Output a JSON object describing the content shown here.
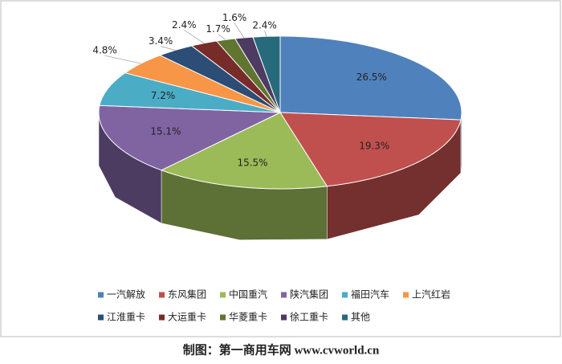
{
  "chart_data": {
    "type": "pie3d",
    "categories": [
      "一汽解放",
      "东风集团",
      "中国重汽",
      "陕汽集团",
      "福田汽车",
      "上汽红岩",
      "江淮重卡",
      "大运重卡",
      "华菱重卡",
      "徐工重卡",
      "其他"
    ],
    "values": [
      26.5,
      19.3,
      15.5,
      15.1,
      7.2,
      4.8,
      3.4,
      2.4,
      1.7,
      1.6,
      2.4
    ],
    "value_labels": [
      "26.5%",
      "19.3%",
      "15.5%",
      "15.1%",
      "7.2%",
      "4.8%",
      "3.4%",
      "2.4%",
      "1.7%",
      "1.6%",
      "2.4%"
    ],
    "colors": [
      "#4f81bd",
      "#c0504d",
      "#9bbb59",
      "#8064a2",
      "#4bacc6",
      "#f79646",
      "#2c4d75",
      "#772c2a",
      "#5f7530",
      "#4d3b62",
      "#276a7c"
    ],
    "legend": "bottom",
    "source": "制图：第一商用车网 www.cvworld.cn"
  }
}
